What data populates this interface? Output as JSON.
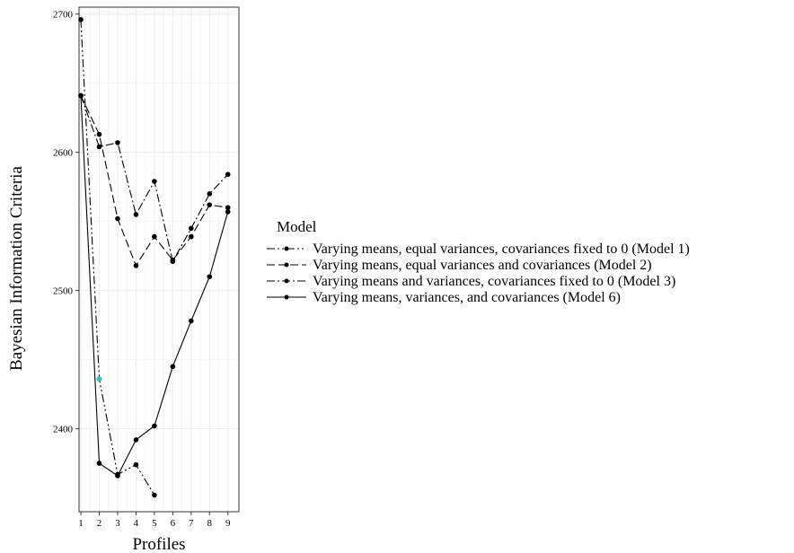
{
  "chart_data": {
    "type": "line",
    "xlabel": "Profiles",
    "ylabel": "Bayesian Information Criteria",
    "x": [
      1,
      2,
      3,
      4,
      5,
      6,
      7,
      8,
      9
    ],
    "xlim": [
      0.9,
      9.6
    ],
    "ylim": [
      2340,
      2705
    ],
    "yticks": [
      2400,
      2500,
      2600,
      2700
    ],
    "grid": true,
    "legend": {
      "title": "Model",
      "position": "right"
    },
    "series": [
      {
        "name": "Varying means, equal variances, covariances fixed to 0 (Model 1)",
        "line_style": "dashdotdot",
        "points": [
          [
            1,
            2696
          ],
          [
            2,
            2436
          ],
          [
            3,
            2367
          ],
          [
            4,
            2374
          ],
          [
            5,
            2352
          ]
        ]
      },
      {
        "name": "Varying means, equal variances and covariances (Model 2)",
        "line_style": "dashed",
        "points": [
          [
            1,
            2641
          ],
          [
            2,
            2613
          ],
          [
            3,
            2552
          ],
          [
            4,
            2518
          ],
          [
            5,
            2539
          ],
          [
            6,
            2522
          ],
          [
            7,
            2539
          ],
          [
            8,
            2562
          ],
          [
            9,
            2560
          ]
        ]
      },
      {
        "name": "Varying means and variances, covariances fixed to 0 (Model 3)",
        "line_style": "dashdot",
        "points": [
          [
            1,
            2641
          ],
          [
            2,
            2604
          ],
          [
            3,
            2607
          ],
          [
            4,
            2555
          ],
          [
            5,
            2579
          ],
          [
            6,
            2521
          ],
          [
            7,
            2545
          ],
          [
            8,
            2570
          ],
          [
            9,
            2584
          ]
        ]
      },
      {
        "name": "Varying means, variances, and covariances (Model 6)",
        "line_style": "solid",
        "points": [
          [
            1,
            2641
          ],
          [
            2,
            2375
          ],
          [
            3,
            2366
          ],
          [
            4,
            2392
          ],
          [
            5,
            2402
          ],
          [
            6,
            2445
          ],
          [
            7,
            2478
          ],
          [
            8,
            2510
          ],
          [
            9,
            2557
          ]
        ]
      }
    ],
    "annotations": [
      {
        "x": 2,
        "y": 2436,
        "color": "#3cbfc8"
      }
    ]
  }
}
